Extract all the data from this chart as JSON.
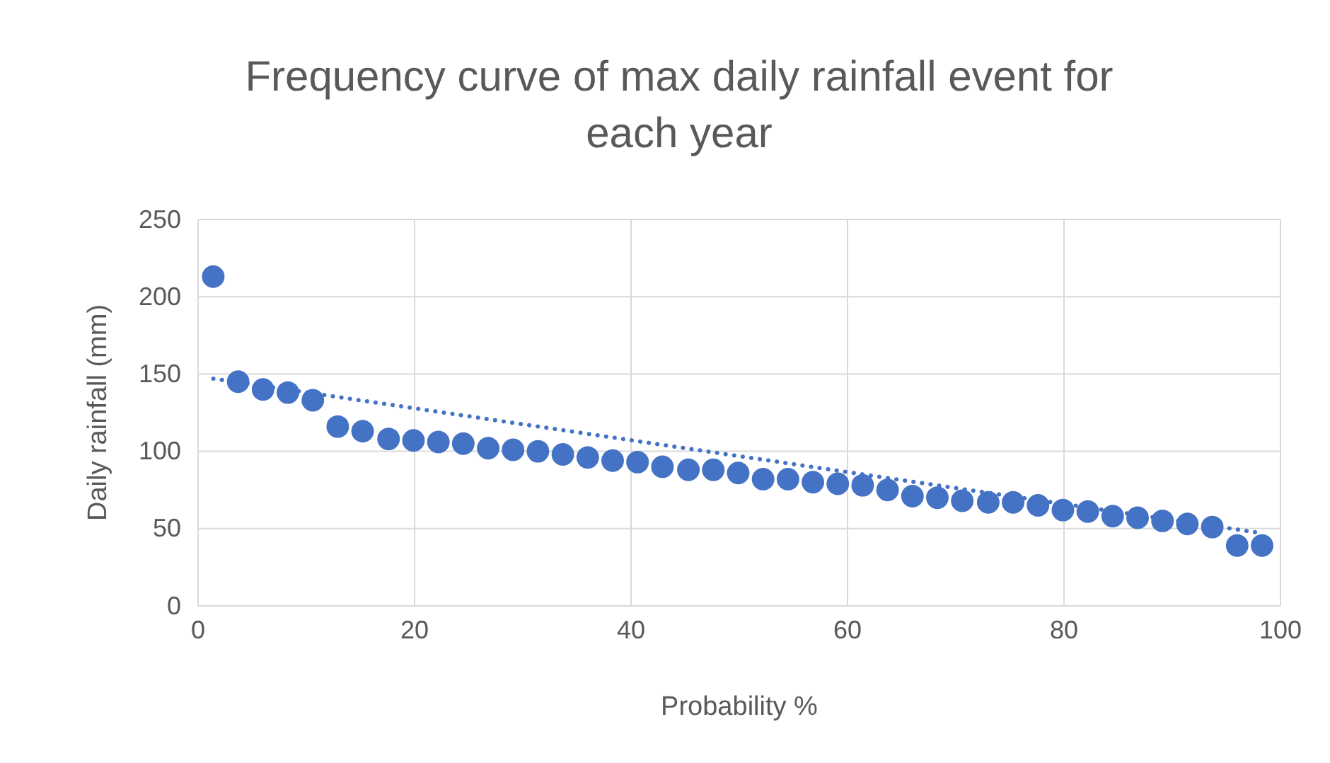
{
  "chart_data": {
    "type": "scatter",
    "title": "Frequency curve of max daily rainfall event for each year",
    "xlabel": "Probability %",
    "ylabel": "Daily rainfall (mm)",
    "xlim": [
      0,
      100
    ],
    "xticks": [
      0,
      20,
      40,
      60,
      80,
      100
    ],
    "ylim": [
      0,
      250
    ],
    "yticks": [
      0,
      50,
      100,
      150,
      200,
      250
    ],
    "grid": true,
    "series": [
      {
        "marker": "circle",
        "color": "#4472c4",
        "x": [
          1.4,
          3.7,
          6.0,
          8.3,
          10.6,
          12.9,
          15.2,
          17.6,
          19.9,
          22.2,
          24.5,
          26.8,
          29.1,
          31.4,
          33.7,
          36.0,
          38.3,
          40.6,
          42.9,
          45.3,
          47.6,
          49.9,
          52.2,
          54.5,
          56.8,
          59.1,
          61.4,
          63.7,
          66.0,
          68.3,
          70.6,
          73.0,
          75.3,
          77.6,
          79.9,
          82.2,
          84.5,
          86.8,
          89.1,
          91.4,
          93.7,
          96.0,
          98.3
        ],
        "values": [
          213,
          145,
          140,
          138,
          133,
          116,
          113,
          108,
          107,
          106,
          105,
          102,
          101,
          100,
          98,
          96,
          94,
          93,
          90,
          88,
          88,
          86,
          82,
          82,
          80,
          79,
          78,
          75,
          71,
          70,
          68,
          67,
          67,
          65,
          62,
          61,
          58,
          57,
          55,
          53,
          51,
          39,
          39
        ]
      },
      {
        "type": "line",
        "color": "#4472c4",
        "line_style": "dotted",
        "x": [
          1.4,
          98.3
        ],
        "values": [
          147,
          47
        ]
      }
    ]
  }
}
